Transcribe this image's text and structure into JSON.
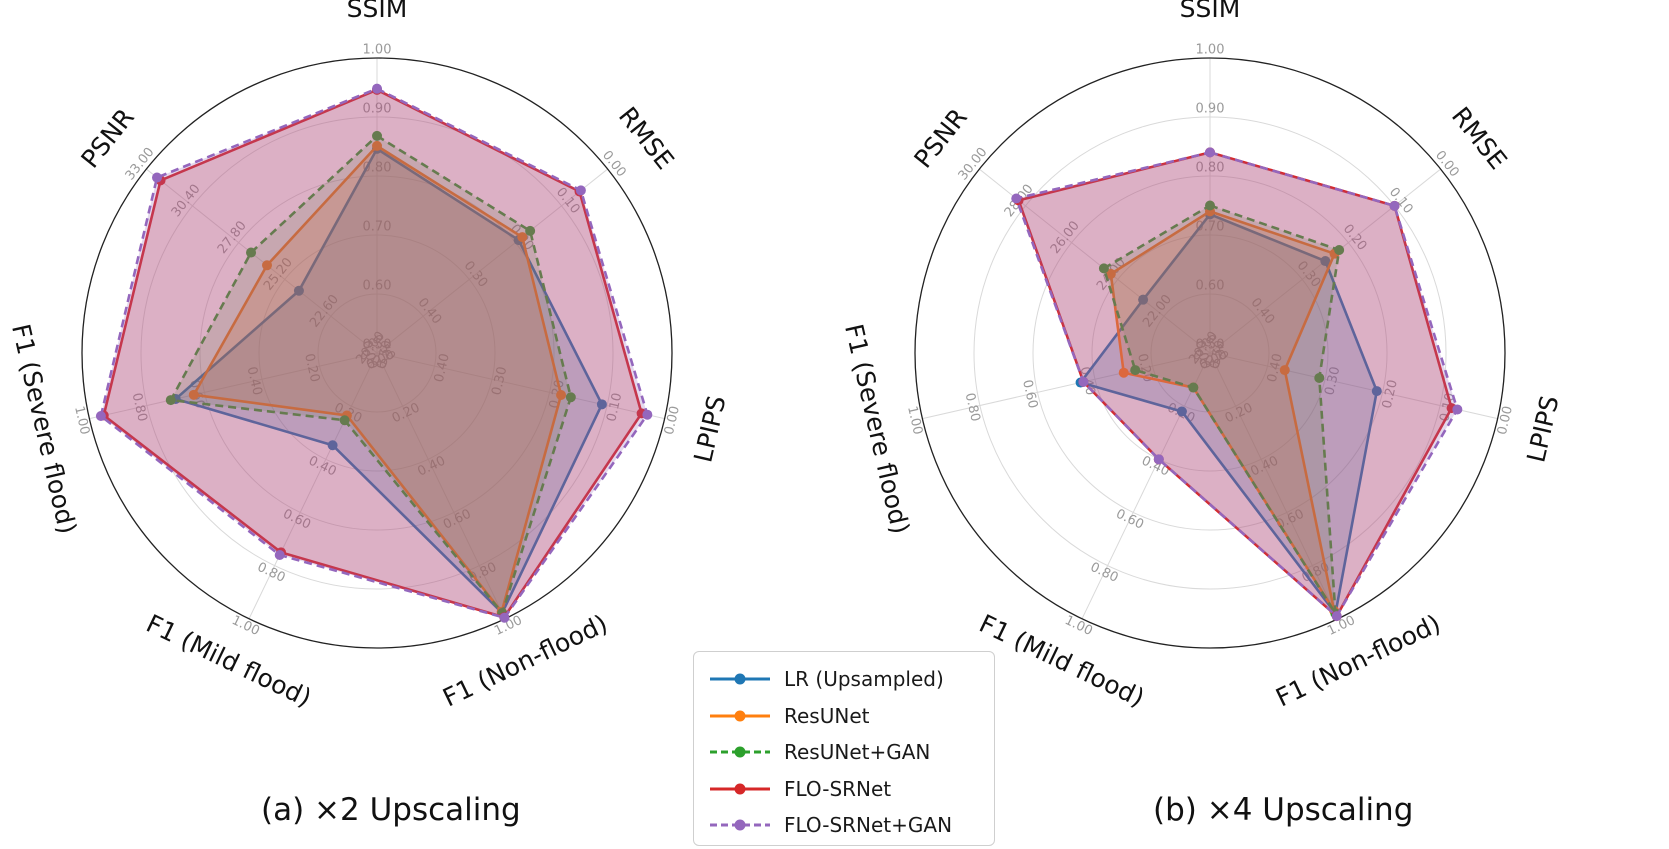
{
  "chart_data": [
    {
      "type": "radar",
      "caption": "(a) ×2 Upscaling",
      "axes": [
        "SSIM",
        "RMSE",
        "LPIPS",
        "F1 (Non-flood)",
        "F1 (Mild flood)",
        "F1 (Severe flood)",
        "PSNR"
      ],
      "axis_tick_labels": [
        [
          "0.50",
          "0.60",
          "0.70",
          "0.80",
          "0.90",
          "1.00"
        ],
        [
          "0.50",
          "0.40",
          "0.30",
          "0.20",
          "0.10",
          "0.00"
        ],
        [
          "0.50",
          "0.40",
          "0.30",
          "0.20",
          "0.10",
          "0.00"
        ],
        [
          "0.00",
          "0.20",
          "0.40",
          "0.60",
          "0.80",
          "1.00"
        ],
        [
          "0.00",
          "0.20",
          "0.40",
          "0.60",
          "0.80",
          "1.00"
        ],
        [
          "0.00",
          "0.20",
          "0.40",
          "0.60",
          "0.80",
          "1.00"
        ],
        [
          "20.00",
          "22.60",
          "25.20",
          "27.80",
          "30.40",
          "33.00"
        ]
      ],
      "axis_ranges": [
        [
          0.5,
          1.0
        ],
        [
          0.5,
          0.0
        ],
        [
          0.5,
          0.0
        ],
        [
          0.0,
          1.0
        ],
        [
          0.0,
          1.0
        ],
        [
          0.0,
          1.0
        ],
        [
          20.0,
          33.0
        ]
      ],
      "series": [
        {
          "name": "LR (Upsampled)",
          "values": [
            0.846,
            0.193,
            0.109,
            0.978,
            0.347,
            0.7,
            24.4
          ]
        },
        {
          "name": "ResUNet",
          "values": [
            0.851,
            0.185,
            0.18,
            0.974,
            0.235,
            0.637,
            26.2
          ]
        },
        {
          "name": "ResUNet+GAN",
          "values": [
            0.868,
            0.168,
            0.163,
            0.978,
            0.253,
            0.717,
            27.1
          ]
        },
        {
          "name": "FLO-SRNet",
          "values": [
            0.946,
            0.061,
            0.04,
            0.994,
            0.75,
            0.95,
            32.2
          ]
        },
        {
          "name": "FLO-SRNet+GAN",
          "values": [
            0.948,
            0.058,
            0.03,
            0.996,
            0.76,
            0.96,
            32.4
          ]
        }
      ],
      "grid": true,
      "legend": "shared, bottom-center"
    },
    {
      "type": "radar",
      "caption": "(b) ×4 Upscaling",
      "axes": [
        "SSIM",
        "RMSE",
        "LPIPS",
        "F1 (Non-flood)",
        "F1 (Mild flood)",
        "F1 (Severe flood)",
        "PSNR"
      ],
      "axis_tick_labels": [
        [
          "0.50",
          "0.60",
          "0.70",
          "0.80",
          "0.90",
          "1.00"
        ],
        [
          "0.50",
          "0.40",
          "0.30",
          "0.20",
          "0.10",
          "0.00"
        ],
        [
          "0.50",
          "0.40",
          "0.30",
          "0.20",
          "0.10",
          "0.00"
        ],
        [
          "0.00",
          "0.20",
          "0.40",
          "0.60",
          "0.80",
          "1.00"
        ],
        [
          "0.00",
          "0.20",
          "0.40",
          "0.60",
          "0.80",
          "1.00"
        ],
        [
          "0.00",
          "0.20",
          "0.40",
          "0.60",
          "0.80",
          "1.00"
        ],
        [
          "20.00",
          "22.00",
          "24.00",
          "26.00",
          "28.00",
          "30.00"
        ]
      ],
      "axis_ranges": [
        [
          0.5,
          1.0
        ],
        [
          0.5,
          0.0
        ],
        [
          0.5,
          0.0
        ],
        [
          0.0,
          1.0
        ],
        [
          0.0,
          1.0
        ],
        [
          0.0,
          1.0
        ],
        [
          20.0,
          30.0
        ]
      ],
      "series": [
        {
          "name": "LR (Upsampled)",
          "values": [
            0.735,
            0.25,
            0.21,
            0.98,
            0.22,
            0.45,
            22.9
          ]
        },
        {
          "name": "ResUNet",
          "values": [
            0.74,
            0.23,
            0.37,
            0.97,
            0.13,
            0.3,
            24.3
          ]
        },
        {
          "name": "ResUNet+GAN",
          "values": [
            0.75,
            0.22,
            0.31,
            0.98,
            0.13,
            0.26,
            24.6
          ]
        },
        {
          "name": "FLO-SRNet",
          "values": [
            0.84,
            0.1,
            0.08,
            0.99,
            0.4,
            0.44,
            28.3
          ]
        },
        {
          "name": "FLO-SRNet+GAN",
          "values": [
            0.84,
            0.1,
            0.07,
            0.99,
            0.4,
            0.44,
            28.4
          ]
        }
      ],
      "grid": true,
      "legend": "shared, bottom-center"
    }
  ],
  "legend": {
    "items": [
      {
        "label": "LR (Upsampled)",
        "color": "#1f77b4",
        "dashed": false
      },
      {
        "label": "ResUNet",
        "color": "#ff7f0e",
        "dashed": false
      },
      {
        "label": "ResUNet+GAN",
        "color": "#2ca02c",
        "dashed": true
      },
      {
        "label": "FLO-SRNet",
        "color": "#d62728",
        "dashed": false
      },
      {
        "label": "FLO-SRNet+GAN",
        "color": "#9467bd",
        "dashed": true
      }
    ]
  },
  "colors": {
    "series": [
      "#1f77b4",
      "#ff7f0e",
      "#2ca02c",
      "#d62728",
      "#9467bd"
    ],
    "grid": "#d9d9d9",
    "frame": "#222222",
    "tick_text": "#9a9a9a"
  }
}
